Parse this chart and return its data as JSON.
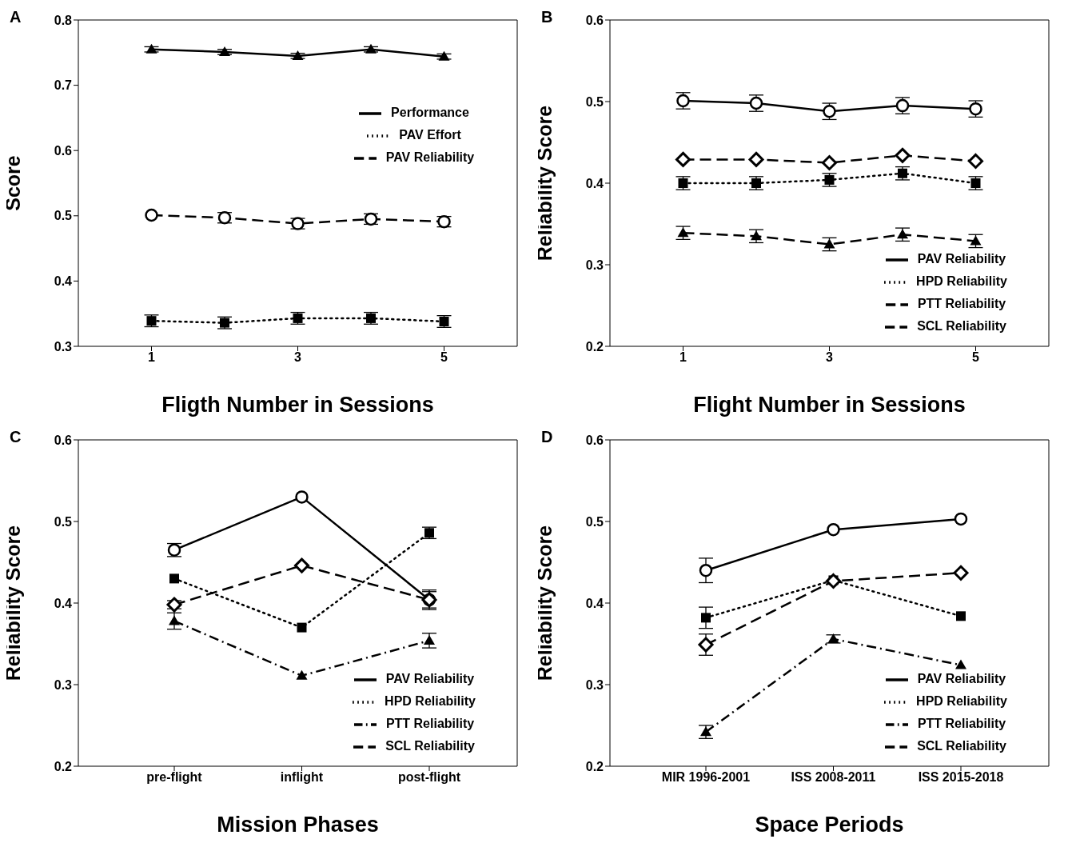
{
  "chart_data": [
    {
      "type": "line",
      "title": "A",
      "xlabel": "Fligth Number in Sessions",
      "ylabel": "Score",
      "x": [
        1,
        2,
        3,
        4,
        5
      ],
      "xlim": [
        0,
        6
      ],
      "xticks": [
        1,
        3,
        5
      ],
      "ylim": [
        0.3,
        0.8
      ],
      "yticks": [
        0.3,
        0.4,
        0.5,
        0.6,
        0.7,
        0.8
      ],
      "legend": "top right",
      "grid": false,
      "series": [
        {
          "name": "Performance",
          "color": "#000000",
          "marker": "triangle",
          "line_style": "solid",
          "values": [
            0.755,
            0.751,
            0.745,
            0.755,
            0.744
          ],
          "errors": [
            0.004,
            0.004,
            0.004,
            0.004,
            0.004
          ]
        },
        {
          "name": "PAV Effort",
          "color": "#000000",
          "marker": "square",
          "line_style": "dotted",
          "values": [
            0.339,
            0.336,
            0.343,
            0.343,
            0.338
          ],
          "errors": [
            0.009,
            0.009,
            0.009,
            0.009,
            0.009
          ]
        },
        {
          "name": "PAV Reliability",
          "color": "#000000",
          "marker": "circle",
          "line_style": "dashed",
          "values": [
            0.501,
            0.497,
            0.488,
            0.495,
            0.491
          ],
          "errors": [
            null,
            0.008,
            0.008,
            0.008,
            0.008
          ]
        }
      ]
    },
    {
      "type": "line",
      "title": "B",
      "xlabel": "Flight Number in Sessions",
      "ylabel": "Reliability Score",
      "x": [
        1,
        2,
        3,
        4,
        5
      ],
      "xlim": [
        0,
        6
      ],
      "xticks": [
        1,
        3,
        5
      ],
      "ylim": [
        0.2,
        0.6
      ],
      "yticks": [
        0.2,
        0.3,
        0.4,
        0.5,
        0.6
      ],
      "legend": "bottom right",
      "grid": false,
      "series": [
        {
          "name": "PAV Reliability",
          "color": "#000000",
          "marker": "circle",
          "line_style": "solid",
          "values": [
            0.501,
            0.498,
            0.488,
            0.495,
            0.491
          ],
          "errors": [
            0.01,
            0.01,
            0.01,
            0.01,
            0.01
          ]
        },
        {
          "name": "HPD Reliability",
          "color": "#000000",
          "marker": "square",
          "line_style": "dotted",
          "values": [
            0.4,
            0.4,
            0.404,
            0.412,
            0.4
          ],
          "errors": [
            0.008,
            0.008,
            0.008,
            0.008,
            0.008
          ]
        },
        {
          "name": "PTT Reliability",
          "color": "#000000",
          "marker": "triangle",
          "line_style": "dashed",
          "values": [
            0.339,
            0.335,
            0.325,
            0.337,
            0.329
          ],
          "errors": [
            0.008,
            0.008,
            0.008,
            0.008,
            0.008
          ]
        },
        {
          "name": "SCL Reliability",
          "color": "#000000",
          "marker": "diamond",
          "line_style": "dashed",
          "values": [
            0.429,
            0.429,
            0.425,
            0.434,
            0.427
          ]
        }
      ]
    },
    {
      "type": "line",
      "title": "C",
      "xlabel": "Mission Phases",
      "ylabel": "Reliability Score",
      "categories": [
        "pre-flight",
        "inflight",
        "post-flight"
      ],
      "ylim": [
        0.2,
        0.6
      ],
      "yticks": [
        0.2,
        0.3,
        0.4,
        0.5,
        0.6
      ],
      "legend": "bottom right",
      "grid": false,
      "series": [
        {
          "name": "PAV Reliability",
          "color": "#000000",
          "marker": "circle",
          "line_style": "solid",
          "values": [
            0.465,
            0.53,
            0.404
          ],
          "errors": [
            0.008,
            null,
            0.012
          ]
        },
        {
          "name": "HPD Reliability",
          "color": "#000000",
          "marker": "square",
          "line_style": "dotted",
          "values": [
            0.43,
            0.37,
            0.486
          ],
          "errors": [
            null,
            null,
            0.007
          ]
        },
        {
          "name": "PTT Reliability",
          "color": "#000000",
          "marker": "triangle",
          "line_style": "dashdot",
          "values": [
            0.378,
            0.311,
            0.354
          ],
          "errors": [
            0.01,
            null,
            0.009
          ]
        },
        {
          "name": "SCL Reliability",
          "color": "#000000",
          "marker": "diamond",
          "line_style": "dashed",
          "values": [
            0.398,
            0.446,
            0.404
          ],
          "errors": [
            0.005,
            null,
            0.01
          ]
        }
      ]
    },
    {
      "type": "line",
      "title": "D",
      "xlabel": "Space Periods",
      "ylabel": "Reliability Score",
      "categories": [
        "MIR 1996-2001",
        "ISS 2008-2011",
        "ISS 2015-2018"
      ],
      "ylim": [
        0.2,
        0.6
      ],
      "yticks": [
        0.2,
        0.3,
        0.4,
        0.5,
        0.6
      ],
      "legend": "bottom right",
      "grid": false,
      "series": [
        {
          "name": "PAV Reliability",
          "color": "#000000",
          "marker": "circle",
          "line_style": "solid",
          "values": [
            0.44,
            0.49,
            0.503
          ],
          "errors": [
            0.015,
            null,
            null
          ]
        },
        {
          "name": "HPD Reliability",
          "color": "#000000",
          "marker": "square",
          "line_style": "dotted",
          "values": [
            0.382,
            0.428,
            0.384
          ],
          "errors": [
            0.013,
            null,
            null
          ]
        },
        {
          "name": "PTT Reliability",
          "color": "#000000",
          "marker": "triangle",
          "line_style": "dashdot",
          "values": [
            0.242,
            0.356,
            0.324
          ],
          "errors": [
            0.008,
            0.005,
            null
          ]
        },
        {
          "name": "SCL Reliability",
          "color": "#000000",
          "marker": "diamond",
          "line_style": "dashed",
          "values": [
            0.349,
            0.427,
            0.437
          ],
          "errors": [
            0.013,
            null,
            null
          ]
        }
      ]
    }
  ]
}
